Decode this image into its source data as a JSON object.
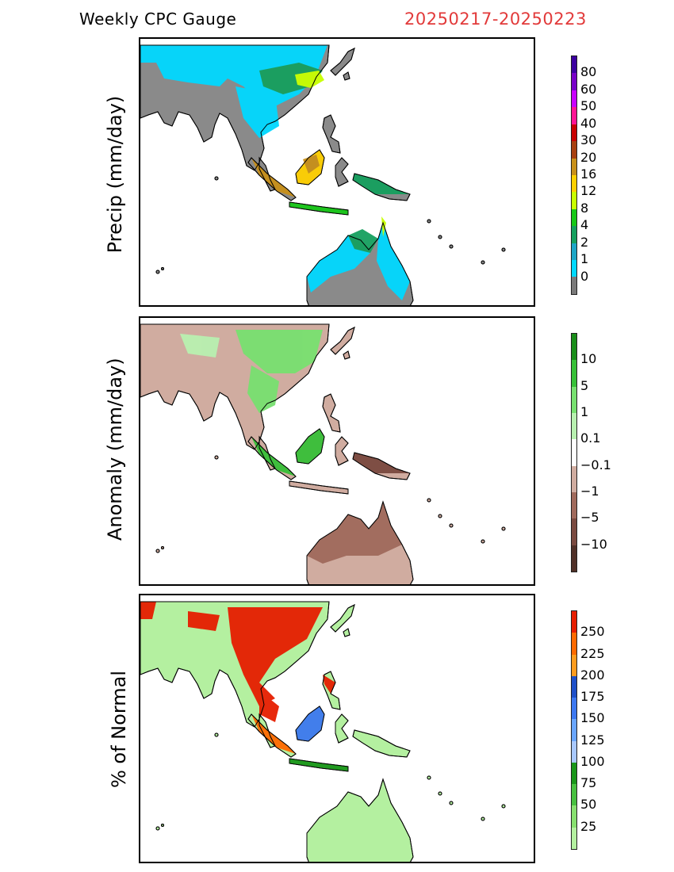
{
  "header": {
    "title": "Weekly CPC Gauge",
    "dates": "20250217-20250223"
  },
  "panels": [
    {
      "id": "precip",
      "ylabel": "Precip (mm/day)",
      "colorbar": {
        "colors": [
          "#7a7a7a",
          "#00d8ff",
          "#1ea6c6",
          "#16a05e",
          "#18c818",
          "#c8ff00",
          "#ffd000",
          "#c8901a",
          "#a84010",
          "#c80000",
          "#ff1493",
          "#c800ff",
          "#7800c8",
          "#3c00a0"
        ],
        "labels": [
          "0",
          "1",
          "2",
          "4",
          "8",
          "12",
          "16",
          "20",
          "30",
          "40",
          "50",
          "60",
          "80"
        ]
      }
    },
    {
      "id": "anomaly",
      "ylabel": "Anomaly (mm/day)",
      "colorbar": {
        "colors": [
          "#503028",
          "#7a4a40",
          "#a06a5c",
          "#d0aca0",
          "#ffffff",
          "#b8f0b0",
          "#78e070",
          "#38c038",
          "#1a8e1a"
        ],
        "labels": [
          "−10",
          "−5",
          "−1",
          "−0.1",
          "0.1",
          "1",
          "5",
          "10"
        ]
      }
    },
    {
      "id": "pct_normal",
      "ylabel": "% of Normal",
      "colorbar": {
        "colors": [
          "#b4f0a0",
          "#88e070",
          "#48c040",
          "#1a961a",
          "#a8c8ff",
          "#6aa6ff",
          "#3c78f0",
          "#1e50c8",
          "#ff9c1e",
          "#ff6a00",
          "#e61e00"
        ],
        "labels": [
          "25",
          "50",
          "75",
          "100",
          "125",
          "150",
          "175",
          "200",
          "225",
          "250"
        ]
      }
    }
  ]
}
